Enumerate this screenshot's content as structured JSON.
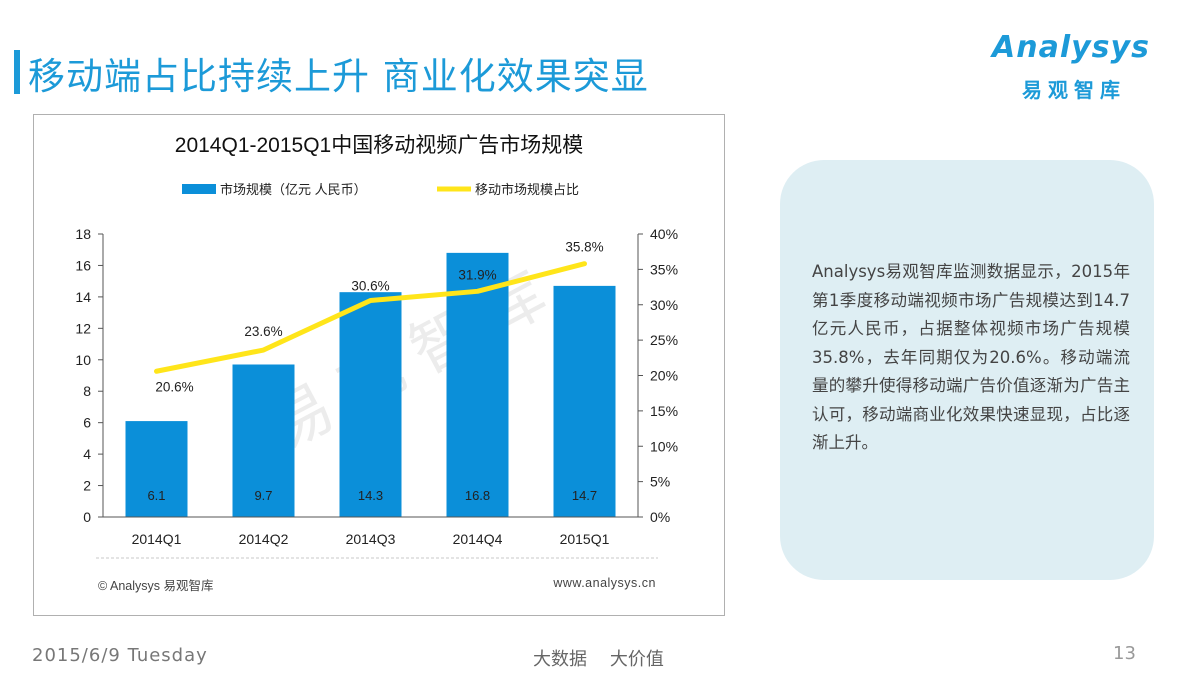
{
  "header": {
    "title": "移动端占比持续上升 商业化效果突显",
    "logo_word": "Analysys",
    "logo_cn": "易观智库"
  },
  "chart_data": {
    "type": "bar",
    "title": "2014Q1-2015Q1中国移动视频广告市场规模",
    "categories": [
      "2014Q1",
      "2014Q2",
      "2014Q3",
      "2014Q4",
      "2015Q1"
    ],
    "series": [
      {
        "name": "市场规模（亿元 人民币）",
        "type": "bar",
        "axis": "left",
        "values": [
          6.1,
          9.7,
          14.3,
          16.8,
          14.7
        ],
        "labels": [
          "6.1",
          "9.7",
          "14.3",
          "16.8",
          "14.7"
        ],
        "color": "#0b8fd9"
      },
      {
        "name": "移动市场规模占比",
        "type": "line",
        "axis": "right",
        "values": [
          20.6,
          23.6,
          30.6,
          31.9,
          35.8
        ],
        "labels": [
          "20.6%",
          "23.6%",
          "30.6%",
          "31.9%",
          "35.8%"
        ],
        "color": "#ffe51a"
      }
    ],
    "y_left": {
      "min": 0,
      "max": 18,
      "ticks": [
        "0",
        "2",
        "4",
        "6",
        "8",
        "10",
        "12",
        "14",
        "16",
        "18"
      ]
    },
    "y_right": {
      "min": 0,
      "max": 40,
      "ticks": [
        "0%",
        "5%",
        "10%",
        "15%",
        "20%",
        "25%",
        "30%",
        "35%",
        "40%"
      ]
    },
    "legend_position": "top",
    "grid": false,
    "watermark": "易观智库",
    "source": "© Analysys 易观智库",
    "website": "www.analysys.cn"
  },
  "info": {
    "text": "Analysys易观智库监测数据显示，2015年第1季度移动端视频市场广告规模达到14.7亿元人民币，占据整体视频市场广告规模35.8%，去年同期仅为20.6%。移动端流量的攀升使得移动端广告价值逐渐为广告主认可，移动端商业化效果快速显现，占比逐渐上升。"
  },
  "footer": {
    "date": "2015/6/9 Tuesday",
    "slogan": "大数据    大价值",
    "page": "13"
  }
}
